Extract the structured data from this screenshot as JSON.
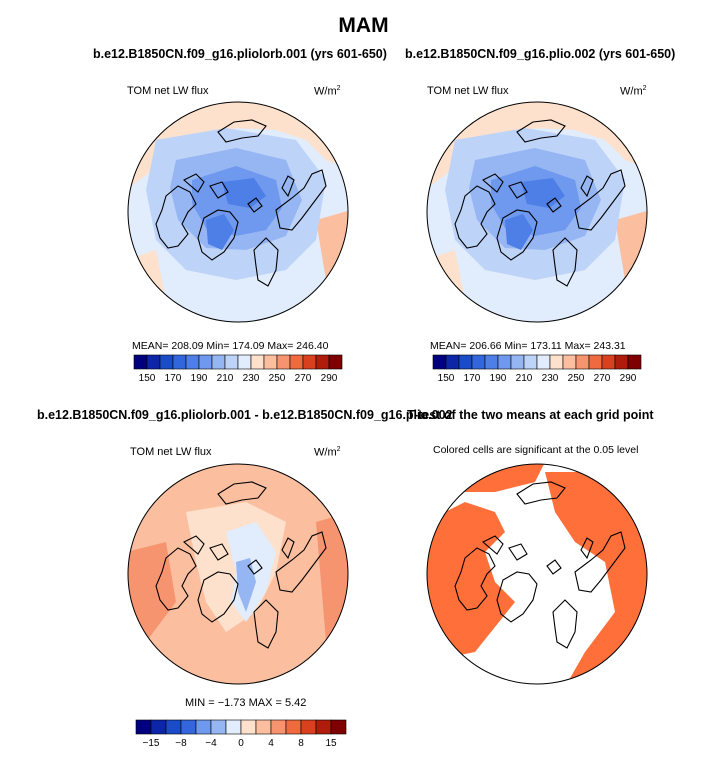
{
  "figure": {
    "season": "MAM"
  },
  "panels": [
    {
      "title": "b.e12.B1850CN.f09_g16.pliolorb.001 (yrs 601-650)",
      "variable": "TOM net LW flux",
      "units": "W/m",
      "units_sup": "2",
      "stats": "MEAN=  208.09    Min=  174.09    Max=  246.40",
      "colorbar_ticks": [
        "150",
        "170",
        "190",
        "210",
        "230",
        "250",
        "270",
        "290"
      ]
    },
    {
      "title": "b.e12.B1850CN.f09_g16.plio.002 (yrs 601-650)",
      "variable": "TOM net LW flux",
      "units": "W/m",
      "units_sup": "2",
      "stats": "MEAN=  206.66    Min=  173.11    Max=  243.31",
      "colorbar_ticks": [
        "150",
        "170",
        "190",
        "210",
        "230",
        "250",
        "270",
        "290"
      ]
    },
    {
      "title": "b.e12.B1850CN.f09_g16.pliolorb.001 - b.e12.B1850CN.f09_g16.plio.002",
      "variable": "TOM net LW flux",
      "units": "W/m",
      "units_sup": "2",
      "stats": "MIN =   −1.73  MAX =    5.42",
      "colorbar_ticks": [
        "−15",
        "−8",
        "−4",
        "0",
        "4",
        "8",
        "15"
      ]
    },
    {
      "title": "T-test of the two means at each grid point",
      "subtitle": "Colored cells are significant at the 0.05 level"
    }
  ],
  "chart_data": [
    {
      "type": "heatmap",
      "projection": "north polar stereographic",
      "title": "b.e12.B1850CN.f09_g16.pliolorb.001 (yrs 601-650)",
      "variable": "TOM net LW flux",
      "units": "W/m2",
      "mean": 208.09,
      "min": 174.09,
      "max": 246.4,
      "levels": [
        150,
        160,
        170,
        180,
        190,
        200,
        210,
        220,
        230,
        240,
        250,
        260,
        270,
        280,
        290
      ],
      "colors": [
        "#00007f",
        "#0d26a8",
        "#1a4cc8",
        "#3366dd",
        "#4d7fe6",
        "#6f99ee",
        "#96b6f3",
        "#bed3f8",
        "#e1ecfc",
        "#fde1cc",
        "#fbbfa0",
        "#f79470",
        "#ef6a3f",
        "#d9411e",
        "#b01c0c",
        "#7f0000"
      ]
    },
    {
      "type": "heatmap",
      "projection": "north polar stereographic",
      "title": "b.e12.B1850CN.f09_g16.plio.002 (yrs 601-650)",
      "variable": "TOM net LW flux",
      "units": "W/m2",
      "mean": 206.66,
      "min": 173.11,
      "max": 243.31,
      "levels": [
        150,
        160,
        170,
        180,
        190,
        200,
        210,
        220,
        230,
        240,
        250,
        260,
        270,
        280,
        290
      ],
      "colors": [
        "#00007f",
        "#0d26a8",
        "#1a4cc8",
        "#3366dd",
        "#4d7fe6",
        "#6f99ee",
        "#96b6f3",
        "#bed3f8",
        "#e1ecfc",
        "#fde1cc",
        "#fbbfa0",
        "#f79470",
        "#ef6a3f",
        "#d9411e",
        "#b01c0c",
        "#7f0000"
      ]
    },
    {
      "type": "heatmap",
      "projection": "north polar stereographic",
      "title": "b.e12.B1850CN.f09_g16.pliolorb.001 - b.e12.B1850CN.f09_g16.plio.002",
      "variable": "TOM net LW flux",
      "units": "W/m2",
      "min": -1.73,
      "max": 5.42,
      "levels": [
        -15,
        -12,
        -8,
        -6,
        -4,
        -2,
        0,
        2,
        4,
        6,
        8,
        12,
        15
      ],
      "colors": [
        "#00007f",
        "#0d26a8",
        "#1a4cc8",
        "#3366dd",
        "#6f99ee",
        "#96b6f3",
        "#e1ecfc",
        "#fde1cc",
        "#fbbfa0",
        "#f79470",
        "#ef6a3f",
        "#d9411e",
        "#b01c0c",
        "#7f0000"
      ]
    },
    {
      "type": "heatmap",
      "projection": "north polar stereographic",
      "title": "T-test of the two means at each grid point",
      "note": "Colored cells are significant at the 0.05 level",
      "significant_color": "#ff6f3a"
    }
  ]
}
